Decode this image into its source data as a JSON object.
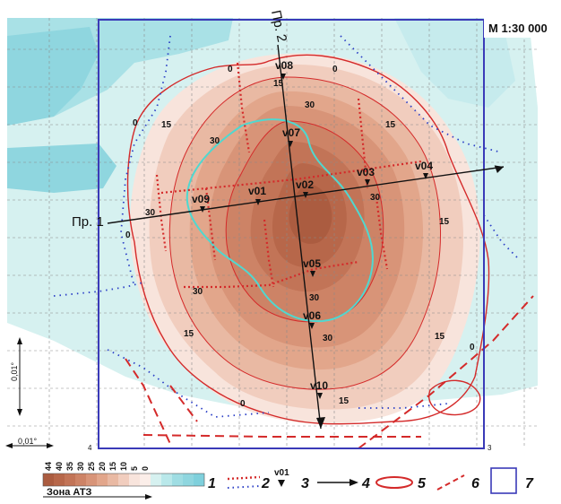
{
  "map": {
    "scale_label": "М 1:30 000",
    "scale_bar_vertical": "0,01°",
    "scale_bar_horizontal": "0,01°",
    "profile_1_label": "Пр. 1",
    "profile_2_label": "Пр. 2",
    "corner_mark_bottom_left": "4",
    "corner_mark_bottom_right": "3",
    "contour_labels": [
      {
        "text": "0"
      },
      {
        "text": "0"
      },
      {
        "text": "0"
      },
      {
        "text": "0"
      },
      {
        "text": "0"
      },
      {
        "text": "0"
      },
      {
        "text": "15"
      },
      {
        "text": "15"
      },
      {
        "text": "15"
      },
      {
        "text": "15"
      },
      {
        "text": "15"
      },
      {
        "text": "15"
      },
      {
        "text": "15"
      },
      {
        "text": "30"
      },
      {
        "text": "30"
      },
      {
        "text": "30"
      },
      {
        "text": "30"
      },
      {
        "text": "30"
      },
      {
        "text": "30"
      },
      {
        "text": "30"
      }
    ],
    "stations": [
      {
        "id": "v01"
      },
      {
        "id": "v02"
      },
      {
        "id": "v03"
      },
      {
        "id": "v04"
      },
      {
        "id": "v05"
      },
      {
        "id": "v06"
      },
      {
        "id": "v07"
      },
      {
        "id": "v08"
      },
      {
        "id": "v09"
      },
      {
        "id": "v10"
      }
    ]
  },
  "legend": {
    "scale_values": [
      "44",
      "40",
      "35",
      "30",
      "25",
      "20",
      "15",
      "10",
      "5",
      "0"
    ],
    "zone_label": "Зона АТЗ",
    "items": [
      {
        "number": "1",
        "meaning": "colour scale"
      },
      {
        "number": "2",
        "meaning": "dotted lines"
      },
      {
        "number": "3",
        "station_example": "v01"
      },
      {
        "number": "4",
        "meaning": "arrow"
      },
      {
        "number": "5",
        "meaning": "red ellipse"
      },
      {
        "number": "6",
        "meaning": "dashed red line"
      },
      {
        "number": "7",
        "meaning": "blue frame"
      }
    ]
  },
  "colors": {
    "zone_0": "#cfeeee",
    "zone_5": "#f7e2da",
    "zone_10": "#f1cdbf",
    "zone_15": "#e9b9a3",
    "zone_20": "#e2a78c",
    "zone_25": "#d89478",
    "zone_30": "#cd8366",
    "zone_35": "#c27457",
    "zone_40": "#b7674a",
    "zone_44": "#ab5c40",
    "sea": "#7fd0dc",
    "contour_red": "#d42a2a",
    "frame_blue": "#3a3ab8",
    "atz_cyan": "#4fd8d0",
    "dot_blue": "#2b3fc6"
  }
}
